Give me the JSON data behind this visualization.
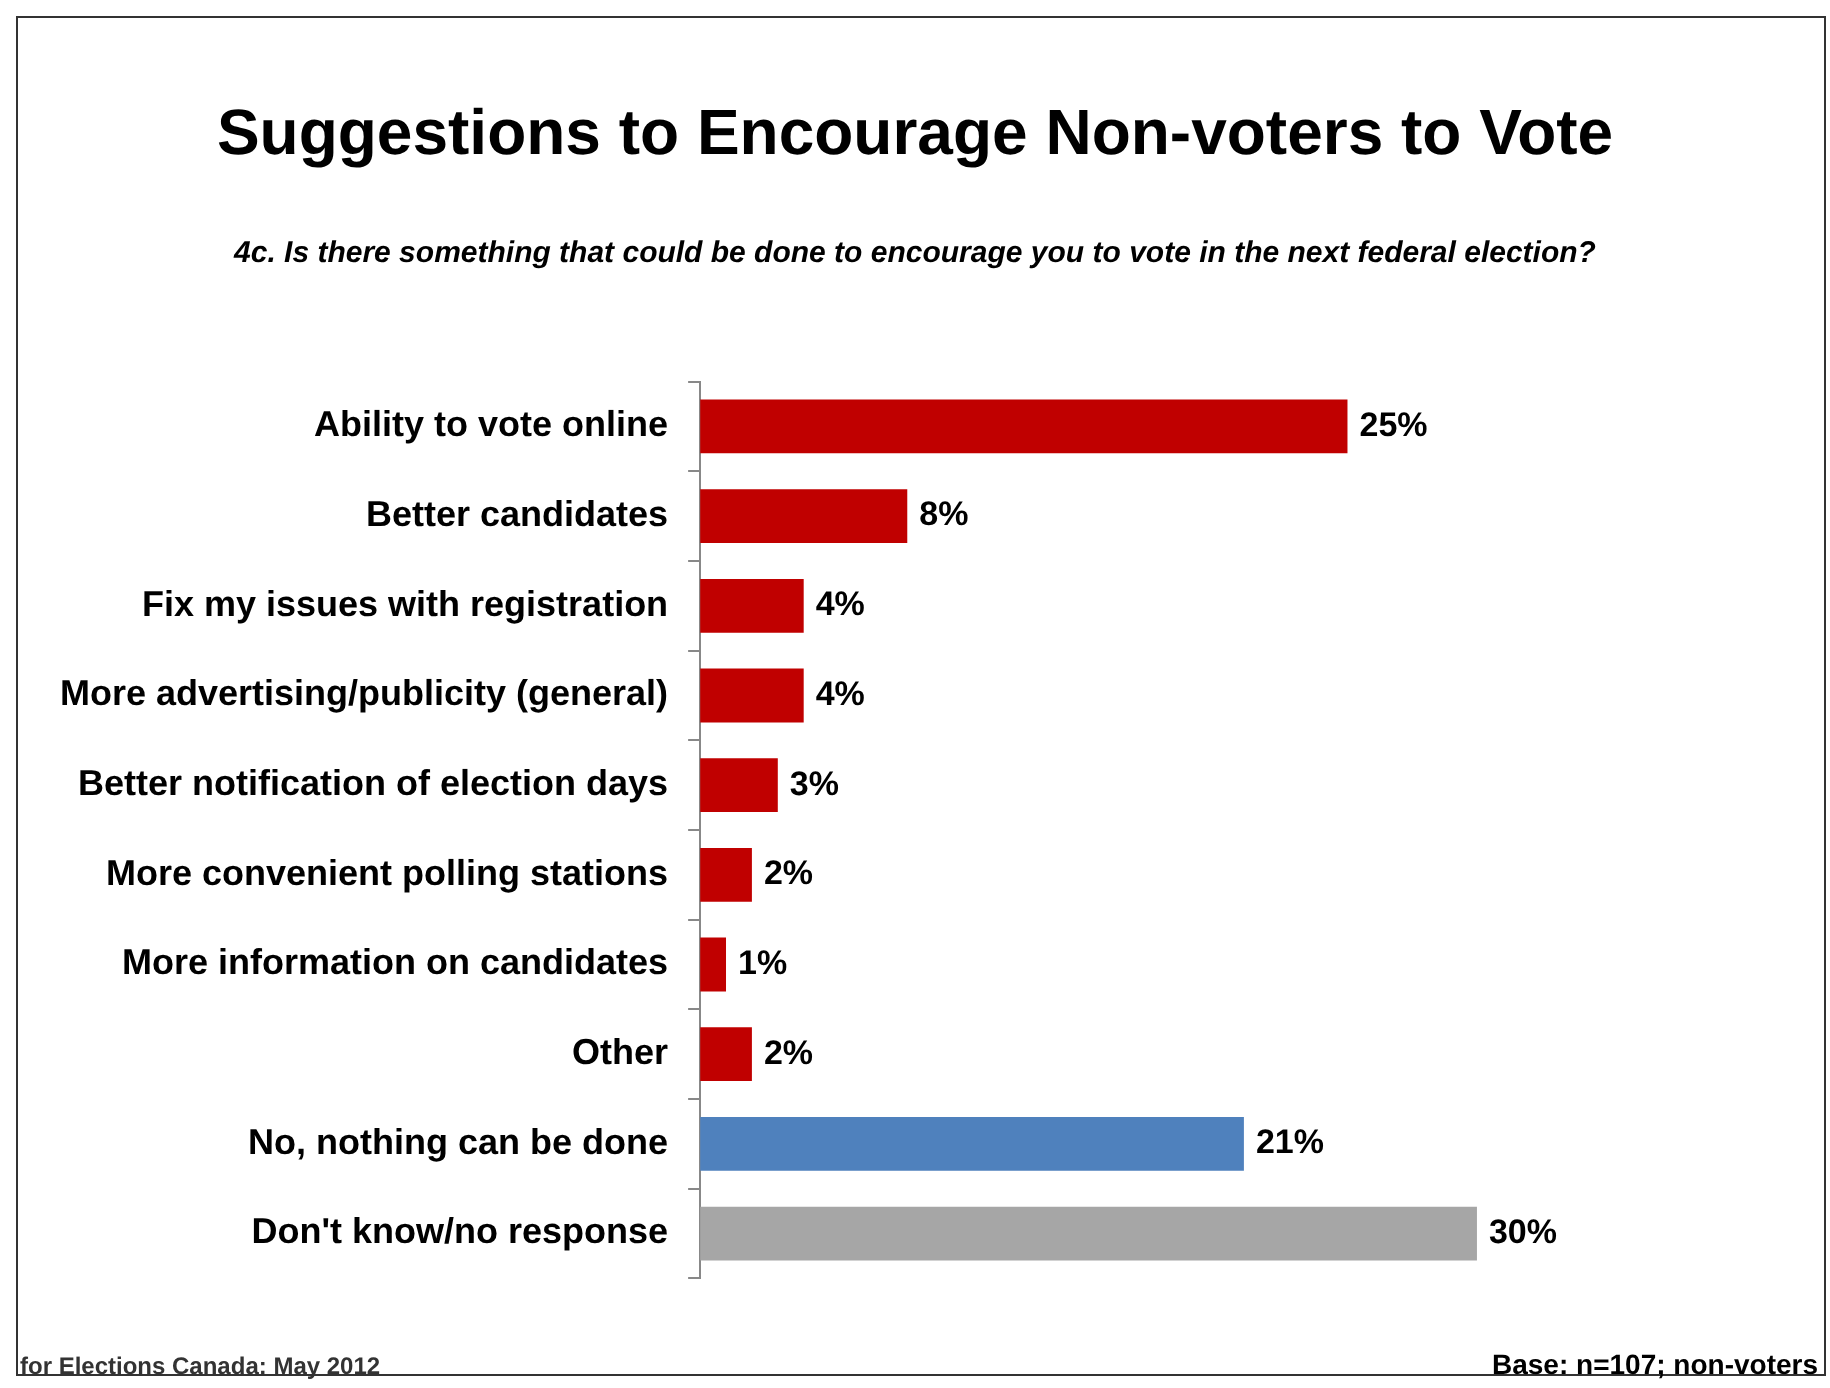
{
  "chart_data": {
    "type": "bar",
    "orientation": "horizontal",
    "title": "Suggestions to Encourage Non-voters to Vote",
    "subtitle": "4c. Is there something that could be done to encourage you to vote in the next federal election?",
    "categories": [
      "Ability to vote online",
      "Better candidates",
      "Fix my issues with registration",
      "More advertising/publicity (general)",
      "Better notification of election days",
      "More convenient polling stations",
      "More information on candidates",
      "Other",
      "No, nothing can be done",
      "Don't know/no response"
    ],
    "values": [
      25,
      8,
      4,
      4,
      3,
      2,
      1,
      2,
      21,
      30
    ],
    "colors": [
      "#c00000",
      "#c00000",
      "#c00000",
      "#c00000",
      "#c00000",
      "#c00000",
      "#c00000",
      "#c00000",
      "#4f81bd",
      "#a6a6a6"
    ],
    "value_labels": [
      "25%",
      "8%",
      "4%",
      "4%",
      "3%",
      "2%",
      "1%",
      "2%",
      "21%",
      "30%"
    ],
    "grid": false,
    "legend": false,
    "tick_labels": "y",
    "annotations": [
      "for Elections Canada: May 2012",
      "Base: n=107; non-voters"
    ]
  }
}
